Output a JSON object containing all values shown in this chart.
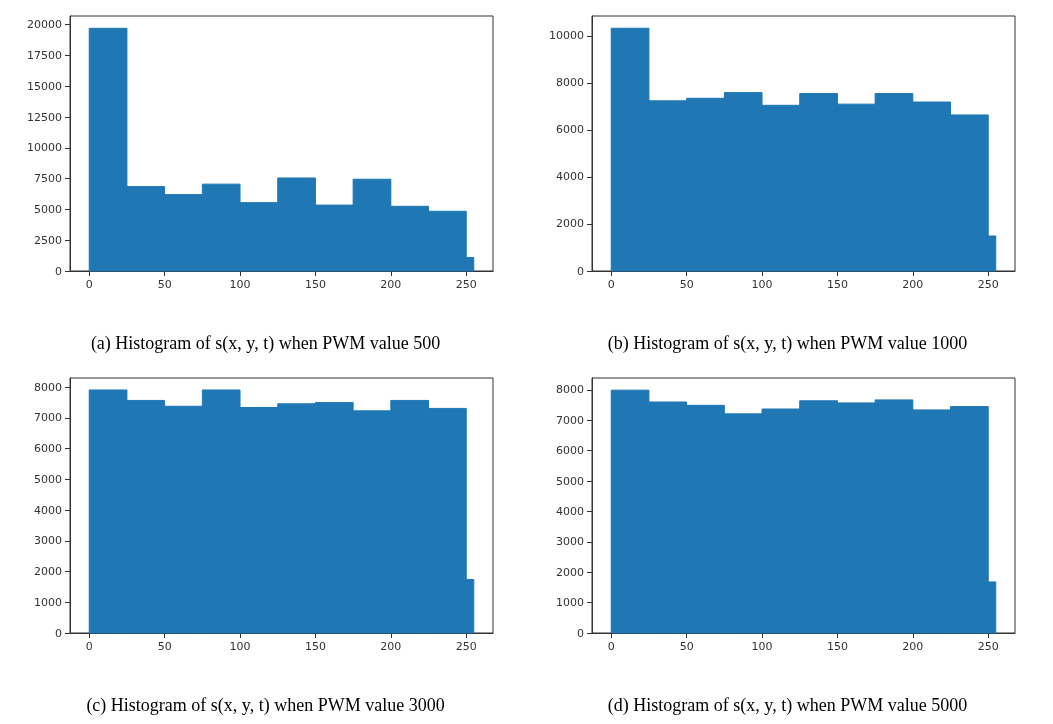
{
  "chart_data": [
    {
      "type": "histogram",
      "title": "(a) Histogram of s(x, y, t) when PWM value 500",
      "bins": [
        0,
        25,
        50,
        75,
        100,
        125,
        150,
        175,
        200,
        225,
        250,
        255
      ],
      "values": [
        19700,
        6850,
        6200,
        7050,
        5550,
        7550,
        5350,
        7450,
        5250,
        4850,
        1100
      ],
      "color": "#1f77b4",
      "xlim": [
        -12.75,
        267.75
      ],
      "xticks": [
        0,
        50,
        100,
        150,
        200,
        250
      ],
      "ylim": [
        0,
        20700
      ],
      "yticks": [
        0,
        2500,
        5000,
        7500,
        10000,
        12500,
        15000,
        17500,
        20000
      ],
      "grid": false
    },
    {
      "type": "histogram",
      "title": "(b) Histogram of s(x, y, t) when PWM value 1000",
      "bins": [
        0,
        25,
        50,
        75,
        100,
        125,
        150,
        175,
        200,
        225,
        250,
        255
      ],
      "values": [
        10330,
        7240,
        7350,
        7590,
        7050,
        7550,
        7100,
        7550,
        7190,
        6640,
        1490
      ],
      "color": "#1f77b4",
      "xlim": [
        -12.75,
        267.75
      ],
      "xticks": [
        0,
        50,
        100,
        150,
        200,
        250
      ],
      "ylim": [
        0,
        10850
      ],
      "yticks": [
        0,
        2000,
        4000,
        6000,
        8000,
        10000
      ],
      "grid": false
    },
    {
      "type": "histogram",
      "title": "(c) Histogram of s(x, y, t) when PWM value 3000",
      "bins": [
        0,
        25,
        50,
        75,
        100,
        125,
        150,
        175,
        200,
        225,
        250,
        255
      ],
      "values": [
        7910,
        7570,
        7380,
        7910,
        7340,
        7460,
        7500,
        7230,
        7570,
        7310,
        1740
      ],
      "color": "#1f77b4",
      "xlim": [
        -12.75,
        267.75
      ],
      "xticks": [
        0,
        50,
        100,
        150,
        200,
        250
      ],
      "ylim": [
        0,
        8300
      ],
      "yticks": [
        0,
        1000,
        2000,
        3000,
        4000,
        5000,
        6000,
        7000,
        8000
      ],
      "grid": false
    },
    {
      "type": "histogram",
      "title": "(d) Histogram of s(x, y, t) when PWM value 5000",
      "bins": [
        0,
        25,
        50,
        75,
        100,
        125,
        150,
        175,
        200,
        225,
        250,
        255
      ],
      "values": [
        7990,
        7600,
        7490,
        7210,
        7370,
        7640,
        7570,
        7670,
        7340,
        7450,
        1680
      ],
      "color": "#1f77b4",
      "xlim": [
        -12.75,
        267.75
      ],
      "xticks": [
        0,
        50,
        100,
        150,
        200,
        250
      ],
      "ylim": [
        0,
        8390
      ],
      "yticks": [
        0,
        1000,
        2000,
        3000,
        4000,
        5000,
        6000,
        7000,
        8000
      ],
      "grid": false
    }
  ]
}
